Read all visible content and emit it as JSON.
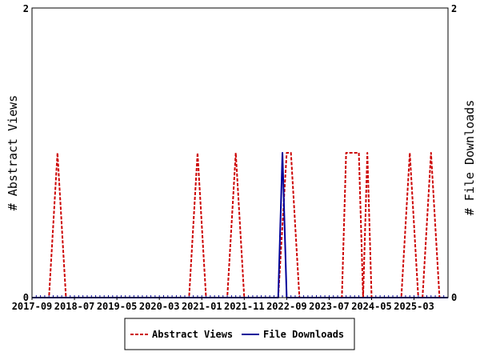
{
  "chart_data": {
    "type": "line",
    "y_left_label": "# Abstract Views",
    "y_right_label": "# File Downloads",
    "x_tick_labels": [
      "2017-09",
      "2018-07",
      "2019-05",
      "2020-03",
      "2021-01",
      "2021-11",
      "2022-09",
      "2023-07",
      "2024-05",
      "2025-03"
    ],
    "y_left_ticks": [
      "0",
      "2"
    ],
    "y_right_ticks": [
      "0",
      "2"
    ],
    "y_left_range": [
      0,
      2
    ],
    "y_right_range": [
      0,
      2
    ],
    "x_month_range": [
      "2017-09",
      "2025-11"
    ],
    "grid": false,
    "legend_position": "bottom",
    "series": [
      {
        "name": "Abstract Views",
        "color": "#cc0000",
        "style": "dashed",
        "axis": "left",
        "points": [
          [
            "2017-09",
            0
          ],
          [
            "2018-01",
            0
          ],
          [
            "2018-02",
            0.5
          ],
          [
            "2018-03",
            1
          ],
          [
            "2018-04",
            0.5
          ],
          [
            "2018-05",
            0
          ],
          [
            "2020-10",
            0
          ],
          [
            "2020-11",
            0.5
          ],
          [
            "2020-12",
            1
          ],
          [
            "2021-01",
            0.5
          ],
          [
            "2021-02",
            0
          ],
          [
            "2021-07",
            0
          ],
          [
            "2021-08",
            0.5
          ],
          [
            "2021-09",
            1
          ],
          [
            "2021-10",
            0.5
          ],
          [
            "2021-11",
            0
          ],
          [
            "2022-07",
            0
          ],
          [
            "2022-08",
            0.5
          ],
          [
            "2022-09",
            1
          ],
          [
            "2022-10",
            1
          ],
          [
            "2022-11",
            0.5
          ],
          [
            "2022-12",
            0
          ],
          [
            "2023-10",
            0
          ],
          [
            "2023-11",
            1
          ],
          [
            "2023-12",
            1
          ],
          [
            "2024-01",
            1
          ],
          [
            "2024-02",
            1
          ],
          [
            "2024-03",
            0
          ],
          [
            "2024-04",
            1
          ],
          [
            "2024-05",
            0
          ],
          [
            "2024-12",
            0
          ],
          [
            "2025-01",
            0.5
          ],
          [
            "2025-02",
            1
          ],
          [
            "2025-03",
            0.5
          ],
          [
            "2025-04",
            0
          ],
          [
            "2025-05",
            0
          ],
          [
            "2025-06",
            0.5
          ],
          [
            "2025-07",
            1
          ],
          [
            "2025-08",
            0.5
          ],
          [
            "2025-09",
            0
          ],
          [
            "2025-11",
            0
          ]
        ]
      },
      {
        "name": "File Downloads",
        "color": "#000099",
        "style": "solid",
        "axis": "right",
        "points": [
          [
            "2017-09",
            0
          ],
          [
            "2022-07",
            0
          ],
          [
            "2022-08",
            1
          ],
          [
            "2022-09",
            0
          ],
          [
            "2025-11",
            0
          ]
        ]
      }
    ],
    "legend": [
      {
        "label": "Abstract Views",
        "color": "#cc0000",
        "style": "dashed"
      },
      {
        "label": "File Downloads",
        "color": "#000099",
        "style": "solid"
      }
    ]
  }
}
